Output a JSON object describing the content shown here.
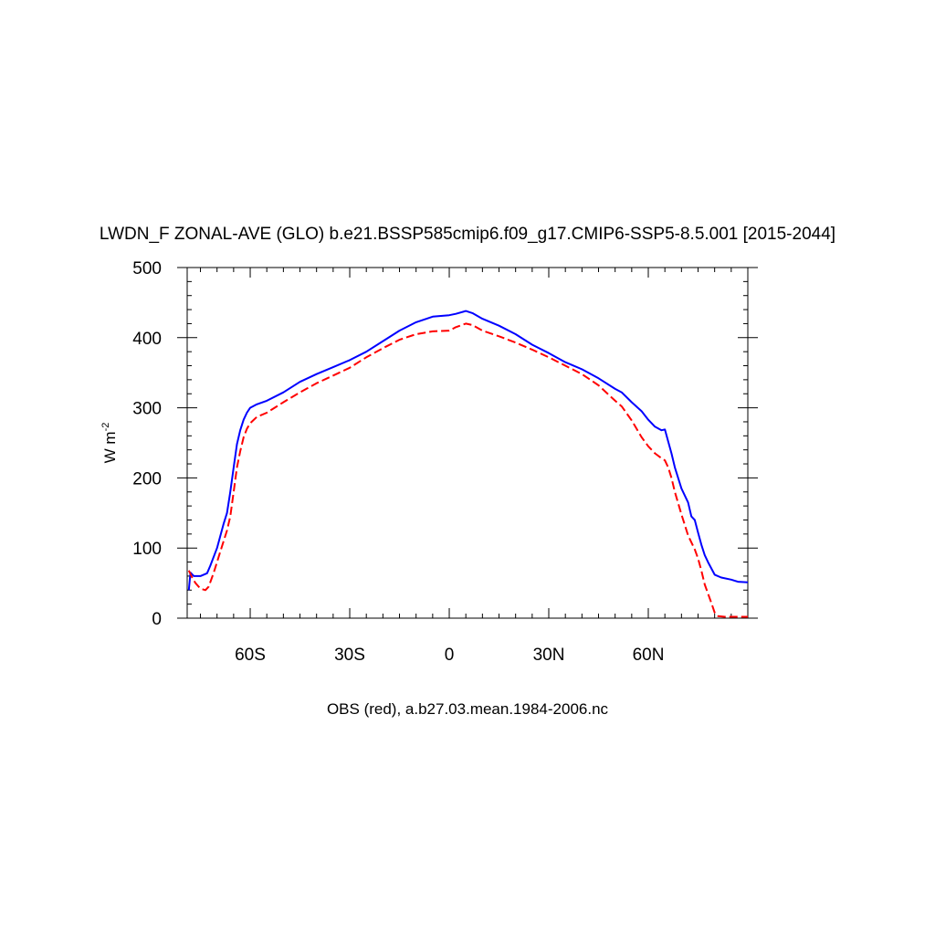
{
  "chart_data": {
    "type": "line",
    "title": "LWDN_F ZONAL-AVE (GLO) b.e21.BSSP585cmip6.f09_g17.CMIP6-SSP5-8.5.001 [2015-2044]",
    "subtitle": "OBS (red), a.b27.03.mean.1984-2006.nc",
    "ylabel": "W m",
    "ylabel_exponent": "-2",
    "xlim": [
      -79,
      90
    ],
    "ylim": [
      0,
      500
    ],
    "xticks": [
      {
        "value": -60,
        "label": "60S"
      },
      {
        "value": -30,
        "label": "30S"
      },
      {
        "value": 0,
        "label": "0"
      },
      {
        "value": 30,
        "label": "30N"
      },
      {
        "value": 60,
        "label": "60N"
      }
    ],
    "yticks": [
      {
        "value": 0,
        "label": "0"
      },
      {
        "value": 100,
        "label": "100"
      },
      {
        "value": 200,
        "label": "200"
      },
      {
        "value": 300,
        "label": "300"
      },
      {
        "value": 400,
        "label": "400"
      },
      {
        "value": 500,
        "label": "500"
      }
    ],
    "grid": false,
    "series": [
      {
        "color": "#0000ff",
        "dash": "solid",
        "points": [
          [
            -78.5,
            40
          ],
          [
            -78,
            65
          ],
          [
            -77,
            60
          ],
          [
            -75,
            60
          ],
          [
            -73,
            64
          ],
          [
            -72,
            75
          ],
          [
            -70,
            100
          ],
          [
            -68,
            135
          ],
          [
            -67,
            150
          ],
          [
            -66,
            180
          ],
          [
            -65,
            215
          ],
          [
            -64,
            248
          ],
          [
            -63,
            268
          ],
          [
            -62,
            283
          ],
          [
            -61,
            293
          ],
          [
            -60,
            300
          ],
          [
            -58,
            305
          ],
          [
            -55,
            310
          ],
          [
            -50,
            322
          ],
          [
            -45,
            337
          ],
          [
            -40,
            348
          ],
          [
            -35,
            358
          ],
          [
            -30,
            368
          ],
          [
            -25,
            380
          ],
          [
            -20,
            395
          ],
          [
            -15,
            410
          ],
          [
            -10,
            422
          ],
          [
            -5,
            430
          ],
          [
            0,
            432
          ],
          [
            2,
            434
          ],
          [
            5,
            438
          ],
          [
            7,
            435
          ],
          [
            10,
            427
          ],
          [
            15,
            417
          ],
          [
            20,
            405
          ],
          [
            25,
            390
          ],
          [
            30,
            378
          ],
          [
            35,
            365
          ],
          [
            40,
            355
          ],
          [
            45,
            342
          ],
          [
            50,
            327
          ],
          [
            52,
            322
          ],
          [
            55,
            308
          ],
          [
            58,
            295
          ],
          [
            60,
            283
          ],
          [
            62,
            273
          ],
          [
            64,
            268
          ],
          [
            65,
            269
          ],
          [
            66,
            252
          ],
          [
            67,
            235
          ],
          [
            68,
            215
          ],
          [
            70,
            185
          ],
          [
            72,
            165
          ],
          [
            73,
            145
          ],
          [
            74,
            140
          ],
          [
            75,
            122
          ],
          [
            76,
            105
          ],
          [
            77,
            90
          ],
          [
            78,
            80
          ],
          [
            80,
            62
          ],
          [
            82,
            58
          ],
          [
            85,
            55
          ],
          [
            87,
            52
          ],
          [
            90,
            51
          ]
        ]
      },
      {
        "color": "#ff0000",
        "dash": "dashed",
        "points": [
          [
            -78.5,
            68
          ],
          [
            -77.5,
            58
          ],
          [
            -76.5,
            50
          ],
          [
            -75,
            42
          ],
          [
            -73.5,
            40
          ],
          [
            -72.5,
            45
          ],
          [
            -71,
            65
          ],
          [
            -69,
            95
          ],
          [
            -67,
            125
          ],
          [
            -66,
            145
          ],
          [
            -65,
            180
          ],
          [
            -64,
            215
          ],
          [
            -63,
            238
          ],
          [
            -62,
            258
          ],
          [
            -61,
            270
          ],
          [
            -60,
            278
          ],
          [
            -58,
            287
          ],
          [
            -55,
            293
          ],
          [
            -50,
            308
          ],
          [
            -45,
            322
          ],
          [
            -40,
            335
          ],
          [
            -35,
            346
          ],
          [
            -30,
            357
          ],
          [
            -25,
            372
          ],
          [
            -20,
            385
          ],
          [
            -15,
            397
          ],
          [
            -10,
            405
          ],
          [
            -5,
            409
          ],
          [
            0,
            410
          ],
          [
            2,
            415
          ],
          [
            5,
            420
          ],
          [
            7,
            418
          ],
          [
            10,
            410
          ],
          [
            15,
            402
          ],
          [
            20,
            393
          ],
          [
            25,
            383
          ],
          [
            30,
            372
          ],
          [
            35,
            360
          ],
          [
            40,
            348
          ],
          [
            45,
            332
          ],
          [
            50,
            310
          ],
          [
            52,
            302
          ],
          [
            55,
            282
          ],
          [
            58,
            258
          ],
          [
            60,
            245
          ],
          [
            62,
            235
          ],
          [
            64,
            228
          ],
          [
            65,
            225
          ],
          [
            66,
            215
          ],
          [
            67,
            200
          ],
          [
            68,
            180
          ],
          [
            70,
            148
          ],
          [
            72,
            118
          ],
          [
            74,
            98
          ],
          [
            75,
            85
          ],
          [
            76,
            68
          ],
          [
            77,
            48
          ],
          [
            78,
            35
          ],
          [
            79,
            22
          ],
          [
            80,
            8
          ],
          [
            81,
            3
          ],
          [
            83,
            2
          ],
          [
            87,
            2
          ],
          [
            90,
            2
          ]
        ]
      }
    ]
  }
}
